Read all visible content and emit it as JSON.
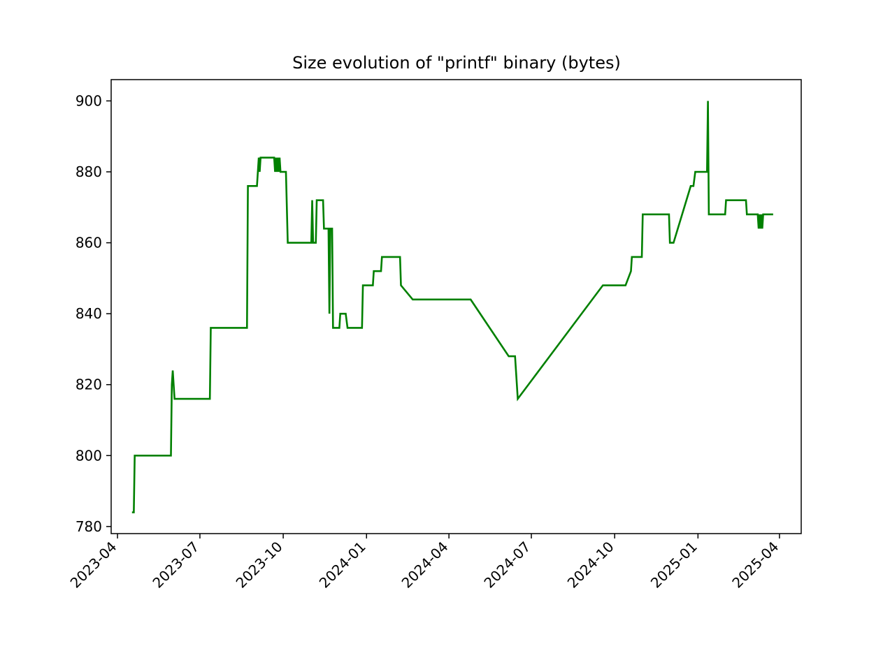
{
  "chart_data": {
    "type": "line",
    "title": "Size evolution of \"printf\" binary (bytes)",
    "xlabel": "",
    "ylabel": "",
    "x_axis_type": "date",
    "xlim": [
      "2023-03-25",
      "2025-04-25"
    ],
    "ylim": [
      778,
      906
    ],
    "x_ticks": [
      "2023-04",
      "2023-07",
      "2023-10",
      "2024-01",
      "2024-04",
      "2024-07",
      "2024-10",
      "2025-01",
      "2025-04"
    ],
    "y_ticks": [
      780,
      800,
      820,
      840,
      860,
      880,
      900
    ],
    "grid": false,
    "legend": "none",
    "colors": {
      "line": "#008000",
      "axes": "#000000",
      "background": "#ffffff"
    },
    "series": [
      {
        "points": [
          [
            "2023-04-17",
            784
          ],
          [
            "2023-04-19",
            784
          ],
          [
            "2023-04-20",
            800
          ],
          [
            "2023-05-30",
            800
          ],
          [
            "2023-05-31",
            820
          ],
          [
            "2023-06-01",
            824
          ],
          [
            "2023-06-03",
            816
          ],
          [
            "2023-07-12",
            816
          ],
          [
            "2023-07-13",
            836
          ],
          [
            "2023-08-22",
            836
          ],
          [
            "2023-08-23",
            876
          ],
          [
            "2023-09-02",
            876
          ],
          [
            "2023-09-03",
            880
          ],
          [
            "2023-09-04",
            884
          ],
          [
            "2023-09-05",
            880
          ],
          [
            "2023-09-06",
            884
          ],
          [
            "2023-09-21",
            884
          ],
          [
            "2023-09-22",
            880
          ],
          [
            "2023-09-23",
            884
          ],
          [
            "2023-09-24",
            880
          ],
          [
            "2023-09-25",
            884
          ],
          [
            "2023-09-26",
            880
          ],
          [
            "2023-09-27",
            884
          ],
          [
            "2023-09-28",
            880
          ],
          [
            "2023-10-04",
            880
          ],
          [
            "2023-10-06",
            860
          ],
          [
            "2023-11-01",
            860
          ],
          [
            "2023-11-02",
            872
          ],
          [
            "2023-11-03",
            860
          ],
          [
            "2023-11-06",
            860
          ],
          [
            "2023-11-07",
            872
          ],
          [
            "2023-11-14",
            872
          ],
          [
            "2023-11-15",
            864
          ],
          [
            "2023-11-20",
            864
          ],
          [
            "2023-11-21",
            840
          ],
          [
            "2023-11-22",
            864
          ],
          [
            "2023-11-24",
            864
          ],
          [
            "2023-11-25",
            836
          ],
          [
            "2023-12-02",
            836
          ],
          [
            "2023-12-03",
            840
          ],
          [
            "2023-12-09",
            840
          ],
          [
            "2023-12-11",
            836
          ],
          [
            "2023-12-27",
            836
          ],
          [
            "2023-12-28",
            848
          ],
          [
            "2024-01-08",
            848
          ],
          [
            "2024-01-09",
            852
          ],
          [
            "2024-01-17",
            852
          ],
          [
            "2024-01-18",
            856
          ],
          [
            "2024-02-07",
            856
          ],
          [
            "2024-02-08",
            848
          ],
          [
            "2024-02-21",
            844
          ],
          [
            "2024-04-25",
            844
          ],
          [
            "2024-06-06",
            828
          ],
          [
            "2024-06-13",
            828
          ],
          [
            "2024-06-16",
            816
          ],
          [
            "2024-09-18",
            848
          ],
          [
            "2024-10-13",
            848
          ],
          [
            "2024-10-19",
            852
          ],
          [
            "2024-10-20",
            856
          ],
          [
            "2024-10-31",
            856
          ],
          [
            "2024-11-01",
            868
          ],
          [
            "2024-11-30",
            868
          ],
          [
            "2024-12-01",
            860
          ],
          [
            "2024-12-05",
            860
          ],
          [
            "2024-12-24",
            876
          ],
          [
            "2024-12-27",
            876
          ],
          [
            "2024-12-29",
            880
          ],
          [
            "2025-01-08",
            880
          ],
          [
            "2025-01-11",
            880
          ],
          [
            "2025-01-12",
            900
          ],
          [
            "2025-01-13",
            868
          ],
          [
            "2025-01-31",
            868
          ],
          [
            "2025-02-01",
            872
          ],
          [
            "2025-02-23",
            872
          ],
          [
            "2025-02-24",
            868
          ],
          [
            "2025-03-08",
            868
          ],
          [
            "2025-03-09",
            864
          ],
          [
            "2025-03-10",
            868
          ],
          [
            "2025-03-11",
            864
          ],
          [
            "2025-03-12",
            868
          ],
          [
            "2025-03-13",
            864
          ],
          [
            "2025-03-14",
            868
          ],
          [
            "2025-03-25",
            868
          ]
        ]
      }
    ]
  }
}
